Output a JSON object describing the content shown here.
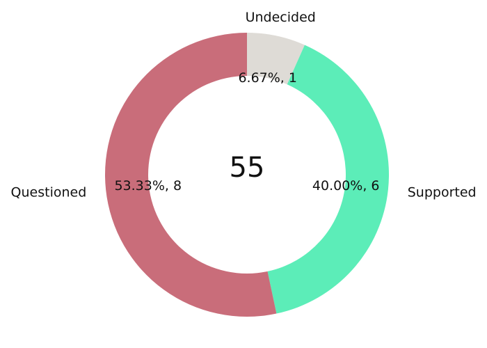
{
  "chart_data": {
    "type": "pie",
    "variant": "donut",
    "center_text": "55",
    "slices": [
      {
        "label": "Undecided",
        "value": 1,
        "percent_label": "6.67%, 1",
        "color": "#dedbd6"
      },
      {
        "label": "Supported",
        "value": 6,
        "percent_label": "40.00%, 6",
        "color": "#5cedb8"
      },
      {
        "label": "Questioned",
        "value": 8,
        "percent_label": "53.33%, 8",
        "color": "#c96d7a"
      }
    ],
    "start_angle": "12 o'clock",
    "direction": "clockwise"
  }
}
